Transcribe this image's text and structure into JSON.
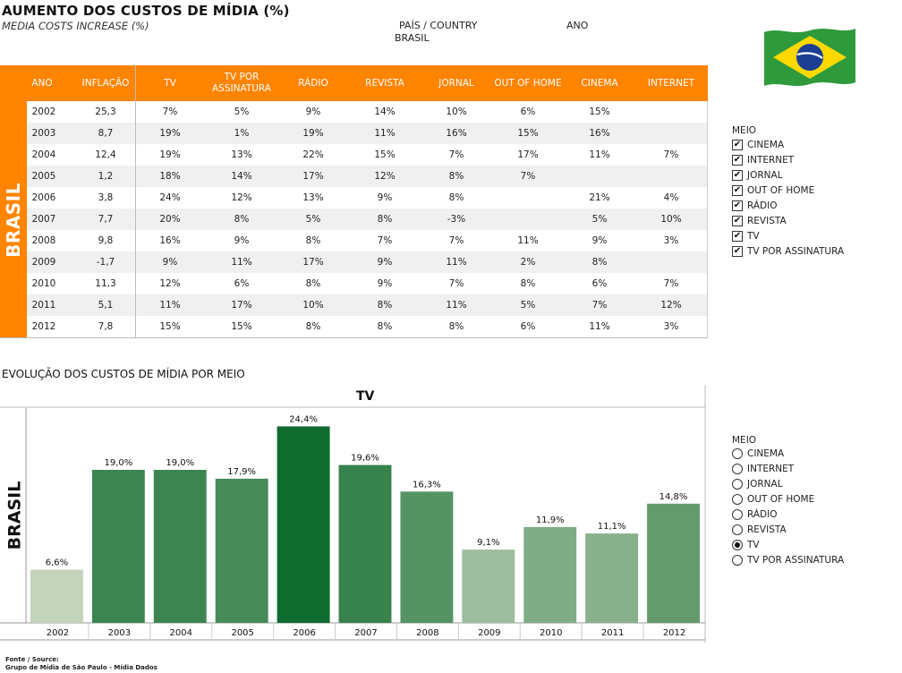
{
  "header": {
    "title": "AUMENTO DOS CUSTOS DE MÍDIA (%)",
    "subtitle": "MEDIA COSTS INCREASE (%)",
    "country_label": "PAÍS / COUNTRY",
    "country_value": "BRASIL",
    "year_label": "ANO"
  },
  "flag": {
    "name": "brazil-flag-icon",
    "colors": {
      "green": "#2f9a3c",
      "yellow": "#ffd800",
      "blue": "#1c3f94"
    }
  },
  "table": {
    "side_label": "BRASIL",
    "columns": [
      "ANO",
      "INFLAÇÃO",
      "TV",
      "TV POR ASSINATURA",
      "RÁDIO",
      "REVISTA",
      "JORNAL",
      "OUT OF HOME",
      "CINEMA",
      "INTERNET"
    ],
    "rows": [
      [
        "2002",
        "25,3",
        "7%",
        "5%",
        "9%",
        "14%",
        "10%",
        "6%",
        "15%",
        ""
      ],
      [
        "2003",
        "8,7",
        "19%",
        "1%",
        "19%",
        "11%",
        "16%",
        "15%",
        "16%",
        ""
      ],
      [
        "2004",
        "12,4",
        "19%",
        "13%",
        "22%",
        "15%",
        "7%",
        "17%",
        "11%",
        "7%"
      ],
      [
        "2005",
        "1,2",
        "18%",
        "14%",
        "17%",
        "12%",
        "8%",
        "7%",
        "",
        ""
      ],
      [
        "2006",
        "3,8",
        "24%",
        "12%",
        "13%",
        "9%",
        "8%",
        "",
        "21%",
        "4%"
      ],
      [
        "2007",
        "7,7",
        "20%",
        "8%",
        "5%",
        "8%",
        "-3%",
        "",
        "5%",
        "10%"
      ],
      [
        "2008",
        "9,8",
        "16%",
        "9%",
        "8%",
        "7%",
        "7%",
        "11%",
        "9%",
        "3%"
      ],
      [
        "2009",
        "-1,7",
        "9%",
        "11%",
        "17%",
        "9%",
        "11%",
        "2%",
        "8%",
        ""
      ],
      [
        "2010",
        "11,3",
        "12%",
        "6%",
        "8%",
        "9%",
        "7%",
        "8%",
        "6%",
        "7%"
      ],
      [
        "2011",
        "5,1",
        "11%",
        "17%",
        "10%",
        "8%",
        "11%",
        "5%",
        "7%",
        "12%"
      ],
      [
        "2012",
        "7,8",
        "15%",
        "15%",
        "8%",
        "8%",
        "8%",
        "6%",
        "11%",
        "3%"
      ]
    ],
    "header_color": "#ff8400"
  },
  "legend_checkbox": {
    "title": "MEIO",
    "items": [
      "CINEMA",
      "INTERNET",
      "JORNAL",
      "OUT OF HOME",
      "RÁDIO",
      "REVISTA",
      "TV",
      "TV POR ASSINATURA"
    ],
    "checked": [
      true,
      true,
      true,
      true,
      true,
      true,
      true,
      true
    ]
  },
  "legend_radio": {
    "title": "MEIO",
    "items": [
      "CINEMA",
      "INTERNET",
      "JORNAL",
      "OUT OF HOME",
      "RÁDIO",
      "REVISTA",
      "TV",
      "TV POR ASSINATURA"
    ],
    "selected": "TV"
  },
  "chart_section": {
    "title": "EVOLUÇÃO DOS CUSTOS DE MÍDIA POR MEIO",
    "side_label": "BRASIL"
  },
  "chart_data": {
    "type": "bar",
    "title": "TV",
    "categories": [
      "2002",
      "2003",
      "2004",
      "2005",
      "2006",
      "2007",
      "2008",
      "2009",
      "2010",
      "2011",
      "2012"
    ],
    "values": [
      6.6,
      19.0,
      19.0,
      17.9,
      24.4,
      19.6,
      16.3,
      9.1,
      11.9,
      11.1,
      14.8
    ],
    "labels": [
      "6,6%",
      "19,0%",
      "19,0%",
      "17,9%",
      "24,4%",
      "19,6%",
      "16,3%",
      "9,1%",
      "11,9%",
      "11,1%",
      "14,8%"
    ],
    "ylim": [
      0,
      25
    ],
    "xlabel": "",
    "ylabel": "",
    "color_scale": [
      "#c4d3bb",
      "#0f6b2e"
    ]
  },
  "footer": {
    "source_label": "Fonte / Source:",
    "source_value": "Grupo de Mídia de São Paulo - Mídia Dados"
  }
}
